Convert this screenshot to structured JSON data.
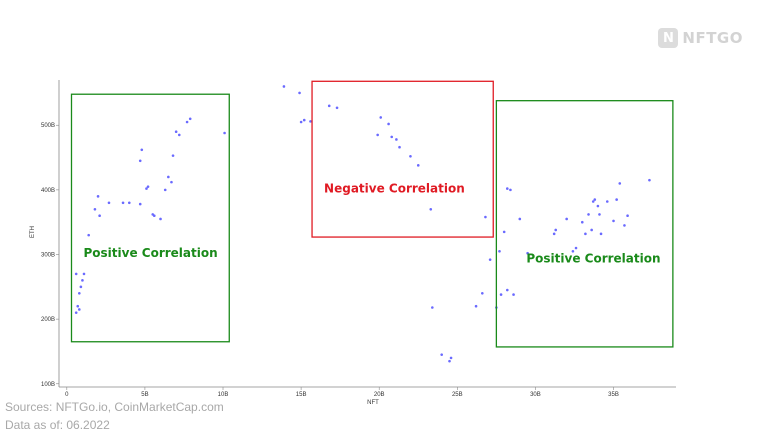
{
  "brand": {
    "logo_mark": "N",
    "logo_text": "NFTGO"
  },
  "footer": {
    "sources": "Sources: NFTGo.io, CoinMarketCap.com",
    "data_as_of": "Data as of: 06.2022"
  },
  "chart_data": {
    "type": "scatter",
    "xlabel": "NFT",
    "ylabel": "ETH",
    "xlim": [
      -5,
      390
    ],
    "ylim": [
      0.95,
      5.7
    ],
    "x_ticks": [
      {
        "value": 0,
        "label": "0"
      },
      {
        "value": 50,
        "label": "5B"
      },
      {
        "value": 100,
        "label": "10B"
      },
      {
        "value": 150,
        "label": "15B"
      },
      {
        "value": 200,
        "label": "20B"
      },
      {
        "value": 250,
        "label": "25B"
      },
      {
        "value": 300,
        "label": "30B"
      },
      {
        "value": 350,
        "label": "35B"
      }
    ],
    "y_ticks": [
      {
        "value": 1,
        "label": "100B"
      },
      {
        "value": 2,
        "label": "200B"
      },
      {
        "value": 3,
        "label": "300B"
      },
      {
        "value": 4,
        "label": "400B"
      },
      {
        "value": 5,
        "label": "500B"
      }
    ],
    "point_color": "#6a6aff",
    "points": [
      [
        6,
        2.1
      ],
      [
        7,
        2.2
      ],
      [
        8,
        2.15
      ],
      [
        8,
        2.4
      ],
      [
        9,
        2.5
      ],
      [
        10,
        2.6
      ],
      [
        6,
        2.7
      ],
      [
        11,
        2.7
      ],
      [
        14,
        3.3
      ],
      [
        18,
        3.7
      ],
      [
        20,
        3.9
      ],
      [
        21,
        3.6
      ],
      [
        27,
        3.8
      ],
      [
        36,
        3.8
      ],
      [
        40,
        3.8
      ],
      [
        47,
        3.78
      ],
      [
        47,
        4.45
      ],
      [
        48,
        4.62
      ],
      [
        51,
        4.02
      ],
      [
        52,
        4.05
      ],
      [
        55,
        3.62
      ],
      [
        56,
        3.6
      ],
      [
        60,
        3.55
      ],
      [
        63,
        4.0
      ],
      [
        65,
        4.2
      ],
      [
        67,
        4.12
      ],
      [
        68,
        4.53
      ],
      [
        70,
        4.9
      ],
      [
        72,
        4.85
      ],
      [
        77,
        5.05
      ],
      [
        79,
        5.1
      ],
      [
        101,
        4.88
      ],
      [
        139,
        5.6
      ],
      [
        149,
        5.5
      ],
      [
        150,
        5.05
      ],
      [
        152,
        5.08
      ],
      [
        156,
        5.06
      ],
      [
        168,
        5.3
      ],
      [
        173,
        5.27
      ],
      [
        199,
        4.85
      ],
      [
        201,
        5.12
      ],
      [
        206,
        5.02
      ],
      [
        208,
        4.82
      ],
      [
        211,
        4.78
      ],
      [
        213,
        4.66
      ],
      [
        220,
        4.52
      ],
      [
        225,
        4.38
      ],
      [
        233,
        3.7
      ],
      [
        234,
        2.18
      ],
      [
        240,
        1.45
      ],
      [
        245,
        1.35
      ],
      [
        246,
        1.4
      ],
      [
        262,
        2.2
      ],
      [
        266,
        2.4
      ],
      [
        268,
        3.58
      ],
      [
        271,
        2.92
      ],
      [
        275,
        2.18
      ],
      [
        277,
        3.05
      ],
      [
        278,
        2.38
      ],
      [
        280,
        3.35
      ],
      [
        282,
        2.45
      ],
      [
        282,
        4.02
      ],
      [
        284,
        4.0
      ],
      [
        286,
        2.38
      ],
      [
        290,
        3.55
      ],
      [
        295,
        3.02
      ],
      [
        312,
        3.32
      ],
      [
        313,
        3.38
      ],
      [
        320,
        3.55
      ],
      [
        324,
        3.05
      ],
      [
        326,
        3.1
      ],
      [
        330,
        3.5
      ],
      [
        332,
        3.32
      ],
      [
        334,
        3.62
      ],
      [
        336,
        3.38
      ],
      [
        337,
        3.82
      ],
      [
        338,
        3.85
      ],
      [
        340,
        3.75
      ],
      [
        341,
        3.62
      ],
      [
        342,
        3.32
      ],
      [
        346,
        3.82
      ],
      [
        350,
        3.52
      ],
      [
        352,
        3.85
      ],
      [
        354,
        4.1
      ],
      [
        357,
        3.45
      ],
      [
        359,
        3.6
      ],
      [
        373,
        4.15
      ]
    ],
    "regions": [
      {
        "label": "Positive Correlation",
        "color": "#1a8a1a",
        "x_range": [
          3,
          104
        ],
        "y_range": [
          1.65,
          5.48
        ]
      },
      {
        "label": "Negative Correlation",
        "color": "#e01b24",
        "x_range": [
          157,
          273
        ],
        "y_range": [
          3.27,
          5.68
        ]
      },
      {
        "label": "Positive Correlation",
        "color": "#1a8a1a",
        "x_range": [
          275,
          388
        ],
        "y_range": [
          1.57,
          5.38
        ]
      }
    ]
  }
}
